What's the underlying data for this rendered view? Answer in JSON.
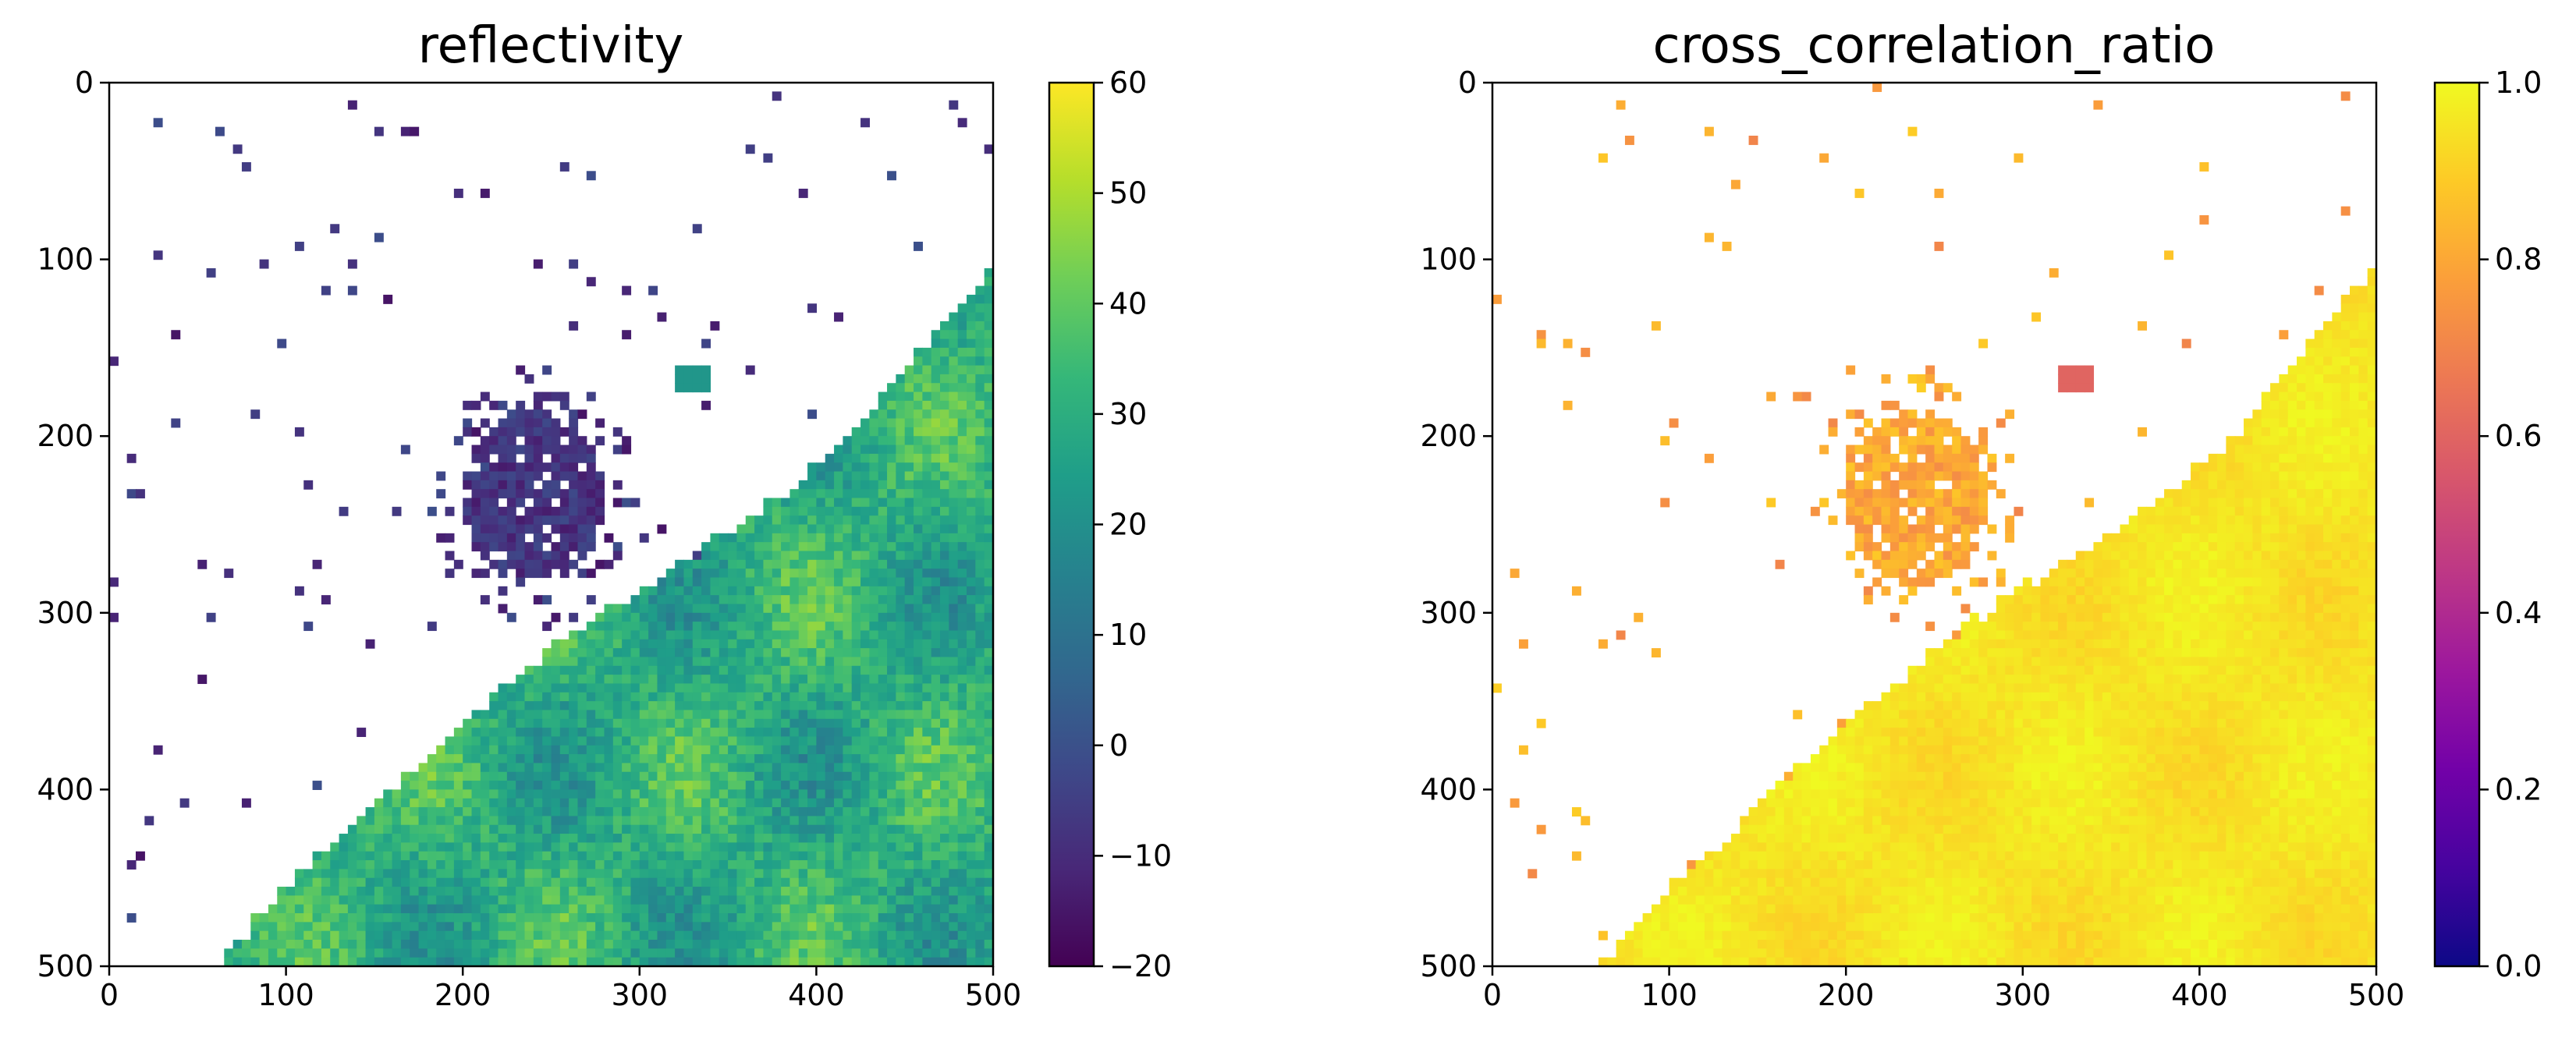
{
  "chart_data": [
    {
      "type": "heatmap",
      "title": "reflectivity",
      "xlim": [
        0,
        500
      ],
      "ylim": [
        500,
        0
      ],
      "x_ticks": [
        0,
        100,
        200,
        300,
        400,
        500
      ],
      "y_ticks": [
        0,
        100,
        200,
        300,
        400,
        500
      ],
      "x_tick_labels": [
        "0",
        "100",
        "200",
        "300",
        "400",
        "500"
      ],
      "y_tick_labels": [
        "0",
        "100",
        "200",
        "300",
        "400",
        "500"
      ],
      "colorbar": {
        "colormap": "viridis",
        "range": [
          -20,
          60
        ],
        "ticks": [
          -20,
          -10,
          0,
          10,
          20,
          30,
          40,
          50,
          60
        ],
        "tick_labels": [
          "−20",
          "−10",
          "0",
          "10",
          "20",
          "30",
          "40",
          "50",
          "60"
        ],
        "colors": [
          "#440154",
          "#482878",
          "#3e4989",
          "#31688e",
          "#26828e",
          "#1f9e89",
          "#35b779",
          "#6ece58",
          "#b5de2b",
          "#fde725"
        ]
      },
      "regions": {
        "precip_band_boundary": [
          [
            60,
            500
          ],
          [
            100,
            455
          ],
          [
            160,
            400
          ],
          [
            210,
            355
          ],
          [
            250,
            320
          ],
          [
            300,
            285
          ],
          [
            360,
            250
          ],
          [
            420,
            200
          ],
          [
            460,
            150
          ],
          [
            500,
            105
          ]
        ],
        "precip_band_value_range": [
          15,
          45
        ],
        "storm_cluster": {
          "center": [
            240,
            235
          ],
          "radius": [
            40,
            50
          ],
          "value": -8
        },
        "small_cell": {
          "center": [
            330,
            168
          ],
          "value": 22
        }
      }
    },
    {
      "type": "heatmap",
      "title": "cross_correlation_ratio",
      "xlim": [
        0,
        500
      ],
      "ylim": [
        500,
        0
      ],
      "x_ticks": [
        0,
        100,
        200,
        300,
        400,
        500
      ],
      "y_ticks": [
        0,
        100,
        200,
        300,
        400,
        500
      ],
      "x_tick_labels": [
        "0",
        "100",
        "200",
        "300",
        "400",
        "500"
      ],
      "y_tick_labels": [
        "0",
        "100",
        "200",
        "300",
        "400",
        "500"
      ],
      "colorbar": {
        "colormap": "plasma",
        "range": [
          0.0,
          1.0
        ],
        "ticks": [
          0.0,
          0.2,
          0.4,
          0.6,
          0.8,
          1.0
        ],
        "tick_labels": [
          "0.0",
          "0.2",
          "0.4",
          "0.6",
          "0.8",
          "1.0"
        ],
        "colors": [
          "#0d0887",
          "#46039f",
          "#7201a8",
          "#9c179e",
          "#bd3786",
          "#d8576b",
          "#ed7953",
          "#fb9f3a",
          "#fdca26",
          "#f0f921"
        ]
      },
      "regions": {
        "precip_band_boundary": [
          [
            60,
            500
          ],
          [
            100,
            455
          ],
          [
            160,
            400
          ],
          [
            210,
            355
          ],
          [
            250,
            320
          ],
          [
            300,
            285
          ],
          [
            360,
            250
          ],
          [
            420,
            200
          ],
          [
            460,
            150
          ],
          [
            500,
            105
          ]
        ],
        "precip_band_value_range": [
          0.9,
          1.0
        ],
        "storm_cluster": {
          "center": [
            240,
            235
          ],
          "radius": [
            40,
            50
          ],
          "value": 0.8
        },
        "small_cell": {
          "center": [
            330,
            168
          ],
          "value": 0.6
        }
      }
    }
  ]
}
